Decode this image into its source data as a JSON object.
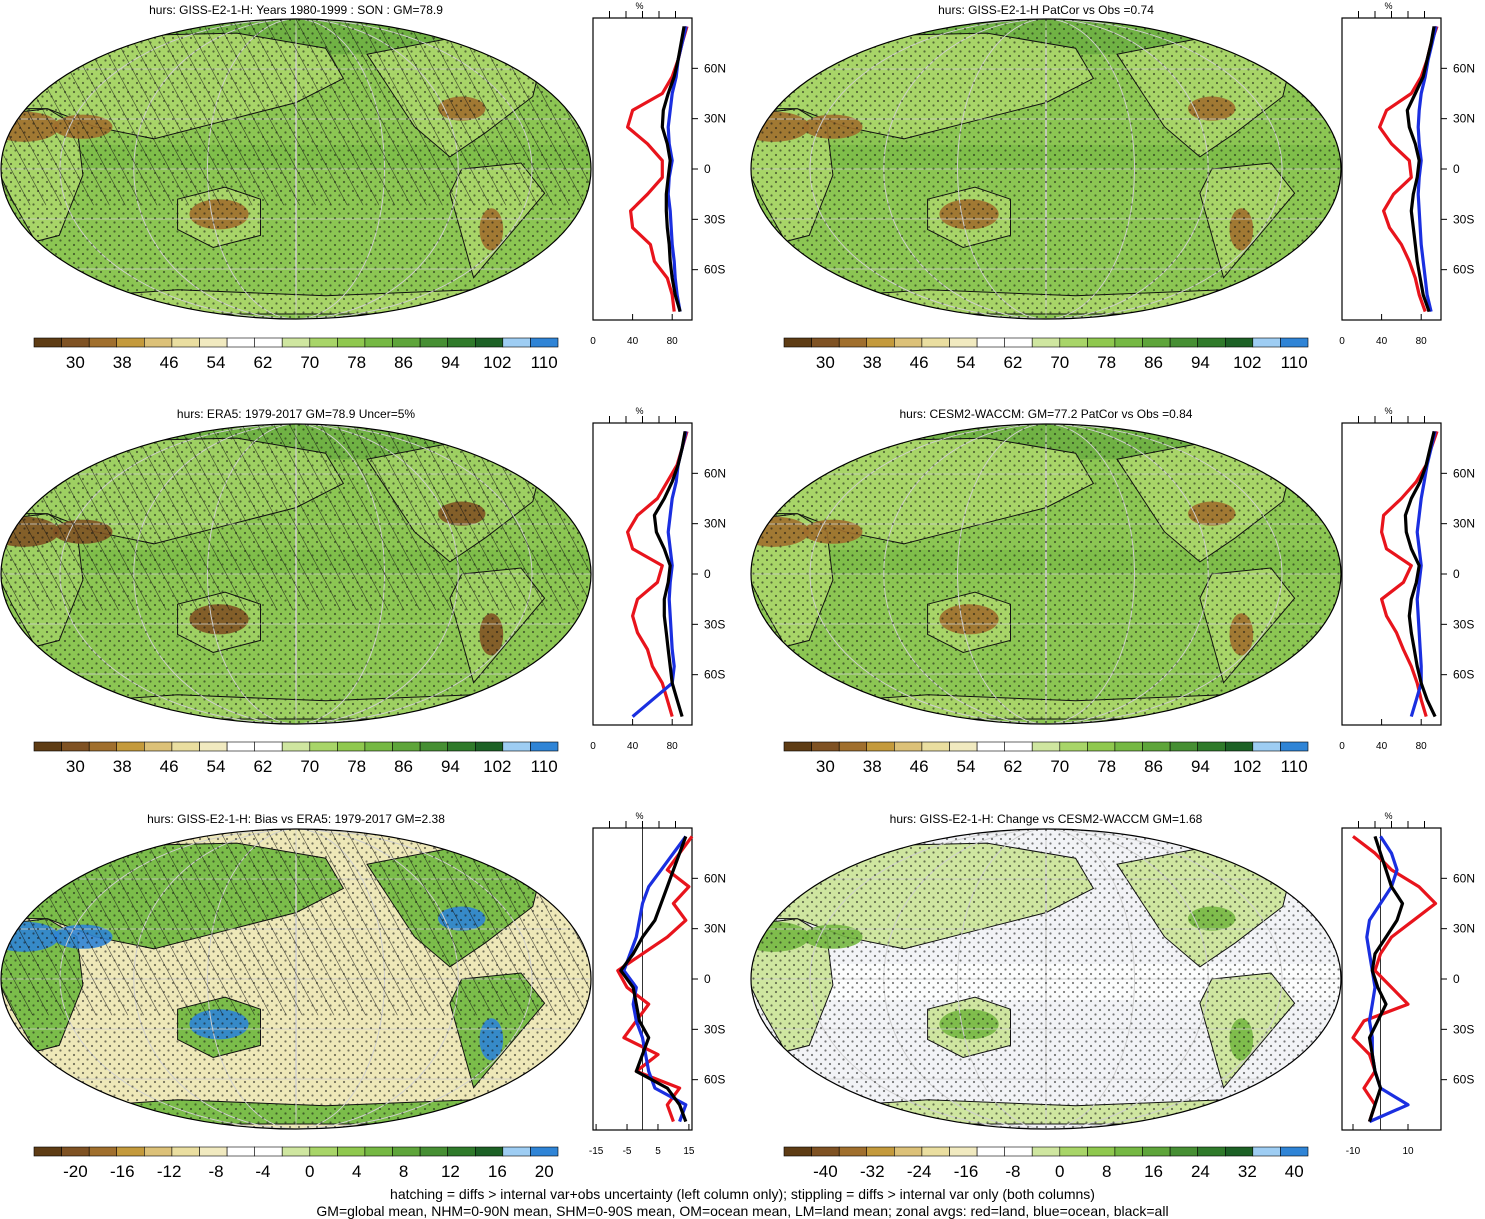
{
  "chart_data": [
    {
      "type": "heatmap",
      "title": "hurs: GISS-E2-1-H: Years 1980-1999 : SON : GM=78.9",
      "colorbar": {
        "ticks": [
          "30",
          "38",
          "46",
          "54",
          "62",
          "70",
          "78",
          "86",
          "94",
          "102",
          "110"
        ]
      },
      "zonal": {
        "xticks": [
          "0",
          "40",
          "80"
        ],
        "xlim": [
          0,
          100
        ],
        "yticks": [
          "60N",
          "30N",
          "0",
          "30S",
          "60S"
        ],
        "series": [
          {
            "color": "#e8141c",
            "lat": [
              -85,
              -75,
              -65,
              -55,
              -45,
              -35,
              -25,
              -15,
              -5,
              5,
              15,
              25,
              35,
              45,
              55,
              65,
              75,
              85
            ],
            "values": [
              82,
              80,
              75,
              62,
              58,
              40,
              38,
              55,
              70,
              70,
              55,
              35,
              40,
              70,
              80,
              86,
              90,
              95
            ]
          },
          {
            "color": "#1a2fe0",
            "lat": [
              -85,
              -75,
              -65,
              -55,
              -45,
              -35,
              -25,
              -15,
              -5,
              5,
              15,
              25,
              35,
              45,
              55,
              65,
              75,
              85
            ],
            "values": [
              88,
              85,
              83,
              82,
              80,
              79,
              78,
              76,
              77,
              80,
              77,
              76,
              78,
              80,
              84,
              86,
              90,
              94
            ]
          },
          {
            "color": "#000000",
            "lat": [
              -85,
              -75,
              -65,
              -55,
              -45,
              -35,
              -25,
              -15,
              -5,
              5,
              15,
              25,
              35,
              45,
              55,
              65,
              75,
              85
            ],
            "values": [
              88,
              83,
              80,
              78,
              77,
              75,
              74,
              74,
              76,
              78,
              75,
              70,
              71,
              76,
              82,
              86,
              89,
              92
            ]
          }
        ]
      }
    },
    {
      "type": "heatmap",
      "title": "hurs: GISS-E2-1-H PatCor vs Obs =0.74",
      "colorbar": {
        "ticks": [
          "30",
          "38",
          "46",
          "54",
          "62",
          "70",
          "78",
          "86",
          "94",
          "102",
          "110"
        ]
      },
      "zonal": {
        "xticks": [
          "0",
          "40",
          "80"
        ],
        "xlim": [
          0,
          100
        ],
        "yticks": [
          "60N",
          "30N",
          "0",
          "30S",
          "60S"
        ],
        "series": [
          {
            "color": "#e8141c",
            "lat": [
              -85,
              -75,
              -65,
              -55,
              -45,
              -35,
              -25,
              -15,
              -5,
              5,
              15,
              25,
              35,
              45,
              55,
              65,
              75,
              85
            ],
            "values": [
              84,
              78,
              74,
              68,
              60,
              48,
              42,
              52,
              70,
              68,
              50,
              38,
              45,
              70,
              80,
              86,
              90,
              96
            ]
          },
          {
            "color": "#1a2fe0",
            "lat": [
              -85,
              -75,
              -65,
              -55,
              -45,
              -35,
              -25,
              -15,
              -5,
              5,
              15,
              25,
              35,
              45,
              55,
              65,
              75,
              85
            ],
            "values": [
              90,
              86,
              84,
              82,
              80,
              79,
              78,
              77,
              78,
              80,
              78,
              77,
              78,
              80,
              84,
              87,
              91,
              95
            ]
          },
          {
            "color": "#000000",
            "lat": [
              -85,
              -75,
              -65,
              -55,
              -45,
              -35,
              -25,
              -15,
              -5,
              5,
              15,
              25,
              35,
              45,
              55,
              65,
              75,
              85
            ],
            "values": [
              88,
              82,
              79,
              76,
              74,
              72,
              70,
              72,
              76,
              78,
              74,
              68,
              66,
              74,
              82,
              86,
              90,
              93
            ]
          }
        ]
      }
    },
    {
      "type": "heatmap",
      "title": "hurs: ERA5: 1979-2017 GM=78.9 Uncer=5%",
      "colorbar": {
        "ticks": [
          "30",
          "38",
          "46",
          "54",
          "62",
          "70",
          "78",
          "86",
          "94",
          "102",
          "110"
        ]
      },
      "zonal": {
        "xticks": [
          "0",
          "40",
          "80"
        ],
        "xlim": [
          0,
          100
        ],
        "yticks": [
          "60N",
          "30N",
          "0",
          "30S",
          "60S"
        ],
        "series": [
          {
            "color": "#e8141c",
            "lat": [
              -85,
              -75,
              -65,
              -55,
              -45,
              -35,
              -25,
              -15,
              -5,
              5,
              15,
              25,
              35,
              45,
              55,
              65,
              75,
              85
            ],
            "values": [
              80,
              75,
              70,
              60,
              55,
              45,
              40,
              45,
              65,
              70,
              40,
              35,
              45,
              65,
              75,
              85,
              90,
              95
            ]
          },
          {
            "color": "#1a2fe0",
            "lat": [
              -85,
              -75,
              -65,
              -55,
              -45,
              -35,
              -25,
              -15,
              -5,
              5,
              15,
              25,
              35,
              45,
              55,
              65,
              75,
              85
            ],
            "values": [
              40,
              60,
              80,
              82,
              80,
              79,
              78,
              77,
              78,
              80,
              78,
              76,
              78,
              80,
              84,
              86,
              90,
              94
            ]
          },
          {
            "color": "#000000",
            "lat": [
              -85,
              -75,
              -65,
              -55,
              -45,
              -35,
              -25,
              -15,
              -5,
              5,
              15,
              25,
              35,
              45,
              55,
              65,
              75,
              85
            ],
            "values": [
              90,
              85,
              80,
              78,
              76,
              74,
              72,
              72,
              76,
              78,
              72,
              64,
              62,
              72,
              80,
              86,
              90,
              93
            ]
          }
        ]
      }
    },
    {
      "type": "heatmap",
      "title": "hurs: CESM2-WACCM: GM=77.2 PatCor vs Obs =0.84",
      "colorbar": {
        "ticks": [
          "30",
          "38",
          "46",
          "54",
          "62",
          "70",
          "78",
          "86",
          "94",
          "102",
          "110"
        ]
      },
      "zonal": {
        "xticks": [
          "0",
          "40",
          "80"
        ],
        "xlim": [
          0,
          100
        ],
        "yticks": [
          "60N",
          "30N",
          "0",
          "30S",
          "60S"
        ],
        "series": [
          {
            "color": "#e8141c",
            "lat": [
              -85,
              -75,
              -65,
              -55,
              -45,
              -35,
              -25,
              -15,
              -5,
              5,
              15,
              25,
              35,
              45,
              55,
              65,
              75,
              85
            ],
            "values": [
              85,
              80,
              76,
              70,
              62,
              55,
              45,
              40,
              62,
              70,
              45,
              40,
              42,
              60,
              75,
              85,
              90,
              96
            ]
          },
          {
            "color": "#1a2fe0",
            "lat": [
              -85,
              -75,
              -65,
              -55,
              -45,
              -35,
              -25,
              -15,
              -5,
              5,
              15,
              25,
              35,
              45,
              55,
              65,
              75,
              85
            ],
            "values": [
              70,
              75,
              80,
              80,
              79,
              78,
              77,
              76,
              78,
              80,
              78,
              76,
              78,
              80,
              83,
              86,
              90,
              94
            ]
          },
          {
            "color": "#000000",
            "lat": [
              -85,
              -75,
              -65,
              -55,
              -45,
              -35,
              -25,
              -15,
              -5,
              5,
              15,
              25,
              35,
              45,
              55,
              65,
              75,
              85
            ],
            "values": [
              94,
              86,
              80,
              76,
              73,
              70,
              68,
              70,
              75,
              78,
              70,
              65,
              64,
              70,
              79,
              85,
              89,
              93
            ]
          }
        ]
      }
    },
    {
      "type": "heatmap",
      "title": "hurs: GISS-E2-1-H: Bias vs ERA5: 1979-2017  GM=2.38",
      "colorbar": {
        "ticks": [
          "-20",
          "-16",
          "-12",
          "-8",
          "-4",
          "0",
          "4",
          "8",
          "12",
          "16",
          "20"
        ]
      },
      "zonal": {
        "xticks": [
          "-15",
          "-5",
          "5",
          "15"
        ],
        "xlim": [
          -16,
          16
        ],
        "yticks": [
          "60N",
          "30N",
          "0",
          "30S",
          "60S"
        ],
        "series": [
          {
            "color": "#e8141c",
            "lat": [
              -85,
              -75,
              -65,
              -55,
              -45,
              -35,
              -25,
              -15,
              -5,
              5,
              15,
              25,
              35,
              45,
              55,
              65,
              75,
              85
            ],
            "values": [
              10,
              8,
              12,
              -2,
              5,
              -6,
              -2,
              2,
              -5,
              -8,
              0,
              8,
              14,
              10,
              15,
              8,
              12,
              16
            ]
          },
          {
            "color": "#1a2fe0",
            "lat": [
              -85,
              -75,
              -65,
              -55,
              -45,
              -35,
              -25,
              -15,
              -5,
              5,
              15,
              25,
              35,
              45,
              55,
              65,
              75,
              85
            ],
            "values": [
              12,
              14,
              4,
              2,
              1,
              0,
              -2,
              -3,
              -2,
              -6,
              -4,
              -2,
              -1,
              0,
              2,
              6,
              10,
              14
            ]
          },
          {
            "color": "#000000",
            "lat": [
              -85,
              -75,
              -65,
              -55,
              -45,
              -35,
              -25,
              -15,
              -5,
              5,
              15,
              25,
              35,
              45,
              55,
              65,
              75,
              85
            ],
            "values": [
              14,
              12,
              8,
              -2,
              0,
              2,
              -1,
              -2,
              -3,
              -7,
              -3,
              0,
              4,
              6,
              8,
              10,
              12,
              14
            ]
          }
        ]
      }
    },
    {
      "type": "heatmap",
      "title": "hurs: GISS-E2-1-H: Change vs CESM2-WACCM GM=1.68",
      "colorbar": {
        "ticks": [
          "-40",
          "-32",
          "-24",
          "-16",
          "-8",
          "0",
          "8",
          "16",
          "24",
          "32",
          "40"
        ]
      },
      "zonal": {
        "xticks": [
          "-10",
          "10"
        ],
        "xlim": [
          -14,
          22
        ],
        "yticks": [
          "60N",
          "30N",
          "0",
          "30S",
          "60S"
        ],
        "series": [
          {
            "color": "#e8141c",
            "lat": [
              -85,
              -75,
              -65,
              -55,
              -45,
              -35,
              -25,
              -15,
              -5,
              5,
              15,
              25,
              35,
              45,
              55,
              65,
              75,
              85
            ],
            "values": [
              -4,
              -2,
              -6,
              -2,
              -4,
              -10,
              -6,
              10,
              4,
              -2,
              0,
              4,
              12,
              20,
              14,
              4,
              -2,
              -10
            ]
          },
          {
            "color": "#1a2fe0",
            "lat": [
              -85,
              -75,
              -65,
              -55,
              -45,
              -35,
              -25,
              -15,
              -5,
              5,
              15,
              25,
              35,
              45,
              55,
              65,
              75,
              85
            ],
            "values": [
              -4,
              10,
              0,
              -2,
              -3,
              -3,
              -4,
              -3,
              -2,
              -3,
              -4,
              -5,
              -4,
              0,
              4,
              6,
              4,
              0
            ]
          },
          {
            "color": "#000000",
            "lat": [
              -85,
              -75,
              -65,
              -55,
              -45,
              -35,
              -25,
              -15,
              -5,
              5,
              15,
              25,
              35,
              45,
              55,
              65,
              75,
              85
            ],
            "values": [
              -4,
              -2,
              0,
              -2,
              -3,
              -4,
              -1,
              2,
              -1,
              -3,
              -2,
              2,
              6,
              8,
              4,
              2,
              0,
              -2
            ]
          }
        ]
      }
    }
  ],
  "footer": {
    "line1": "hatching = diffs > internal var+obs uncertainty (left column only); stippling = diffs > internal var only (both columns)",
    "line2": "GM=global mean, NHM=0-90N mean, SHM=0-90S mean, OM=ocean mean, LM=land mean; zonal avgs: red=land, blue=ocean, black=all"
  },
  "colors": {
    "abs_scale": [
      "#5e3c14",
      "#7f5223",
      "#a06f2d",
      "#c49a3c",
      "#dcc178",
      "#eadea0",
      "#f1eac0",
      "#ffffff",
      "#ffffff",
      "#cfe6a0",
      "#a8d568",
      "#8fc84e",
      "#75b843",
      "#5ea53a",
      "#468f33",
      "#2f7a2a",
      "#1c6125",
      "#9ecdf3",
      "#2f84d6"
    ],
    "diff_scale": [
      "#5e3c14",
      "#7f5223",
      "#a06f2d",
      "#c49a3c",
      "#dcc178",
      "#eadea0",
      "#f1eac0",
      "#ffffff",
      "#ffffff",
      "#cfe6a0",
      "#a8d568",
      "#8fc84e",
      "#75b843",
      "#5ea53a",
      "#468f33",
      "#2f7a2a",
      "#1c6125",
      "#9ecdf3",
      "#2f84d6"
    ]
  }
}
